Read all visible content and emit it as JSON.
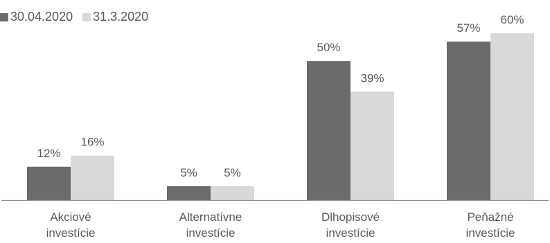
{
  "chart_data": {
    "type": "bar",
    "categories": [
      [
        "Akciové",
        "investície"
      ],
      [
        "Alternatívne",
        "investície"
      ],
      [
        "Dlhopisové",
        "investície"
      ],
      [
        "Peňažné",
        "investície"
      ]
    ],
    "series": [
      {
        "name": "30.04.2020",
        "values": [
          12,
          5,
          50,
          57
        ],
        "color": "#6b6b6b"
      },
      {
        "name": "31.3.2020",
        "values": [
          16,
          5,
          39,
          60
        ],
        "color": "#d9d9d9"
      }
    ],
    "value_suffix": "%",
    "ylim": [
      0,
      68
    ],
    "legend_position": "top-left",
    "grid": false,
    "title": "",
    "xlabel": "",
    "ylabel": ""
  }
}
